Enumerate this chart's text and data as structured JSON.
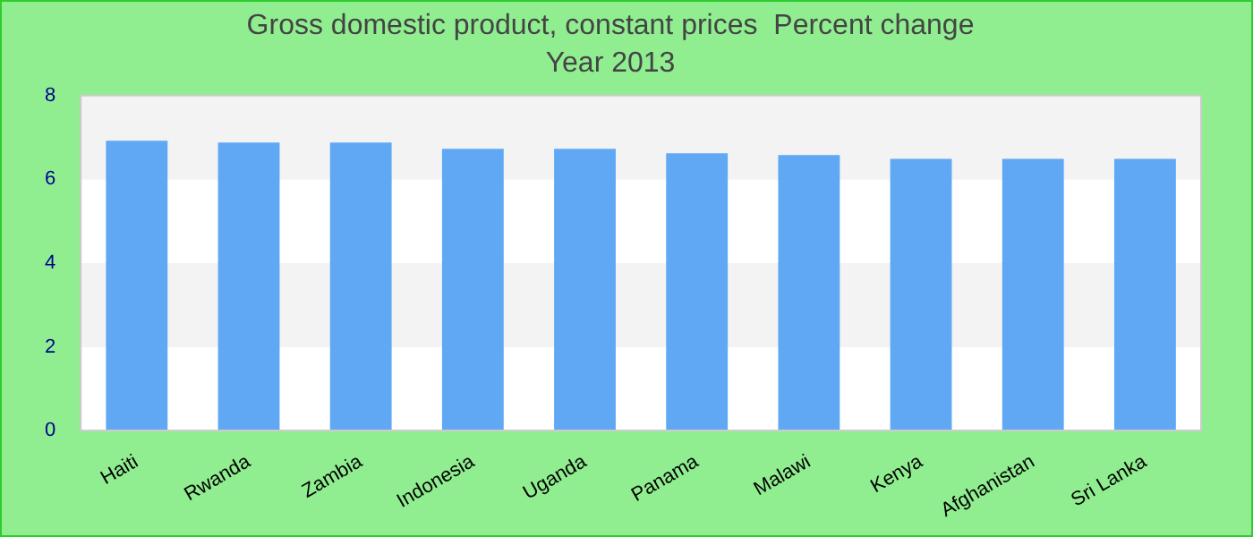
{
  "chart_data": {
    "type": "bar",
    "title": "Gross domestic product, constant prices  Percent change",
    "subtitle": "Year 2013",
    "categories": [
      "Haiti",
      "Rwanda",
      "Zambia",
      "Indonesia",
      "Uganda",
      "Panama",
      "Malawi",
      "Kenya",
      "Afghanistan",
      "Sri Lanka"
    ],
    "values": [
      6.92,
      6.88,
      6.88,
      6.73,
      6.73,
      6.62,
      6.58,
      6.49,
      6.49,
      6.49
    ],
    "color": "#60a8f4",
    "ylim": [
      0,
      8
    ],
    "yticks": [
      0,
      2,
      4,
      6,
      8
    ],
    "grid": "y",
    "legend": false
  }
}
